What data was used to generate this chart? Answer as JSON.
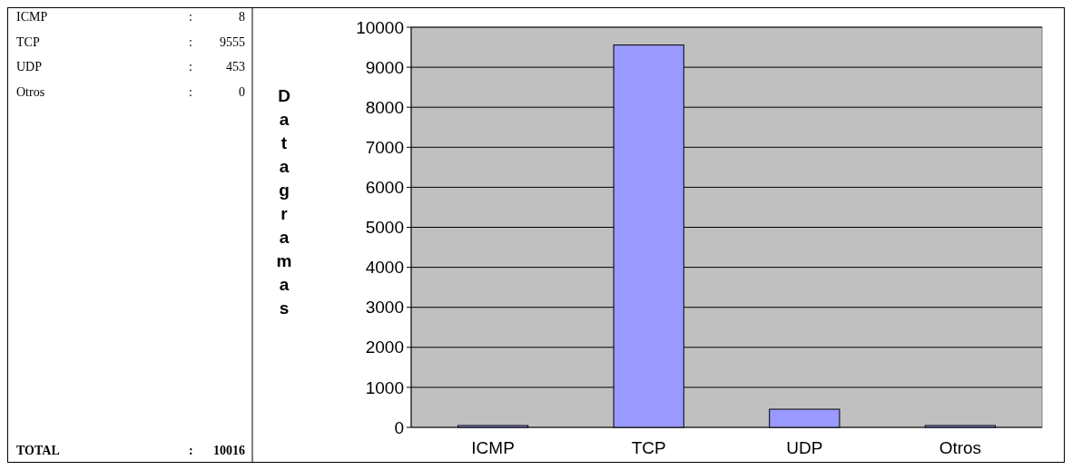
{
  "chart_data": [
    {
      "type": "other",
      "categories": [
        "ICMP",
        "TCP",
        "UDP",
        "Otros",
        "TOTAL"
      ],
      "values": [
        8,
        9555,
        453,
        0,
        10016
      ],
      "data_labels": true,
      "annotations": [
        ":",
        ":",
        ":",
        ":",
        ":"
      ]
    },
    {
      "type": "bar",
      "ylabel": "Datagramas",
      "categories": [
        "ICMP",
        "TCP",
        "UDP",
        "Otros"
      ],
      "values": [
        8,
        9555,
        453,
        0
      ],
      "color": "#9999ff",
      "ylim": [
        0,
        10000
      ],
      "yticks": [
        0,
        1000,
        2000,
        3000,
        4000,
        5000,
        6000,
        7000,
        8000,
        9000,
        10000
      ],
      "grid": "y"
    }
  ]
}
